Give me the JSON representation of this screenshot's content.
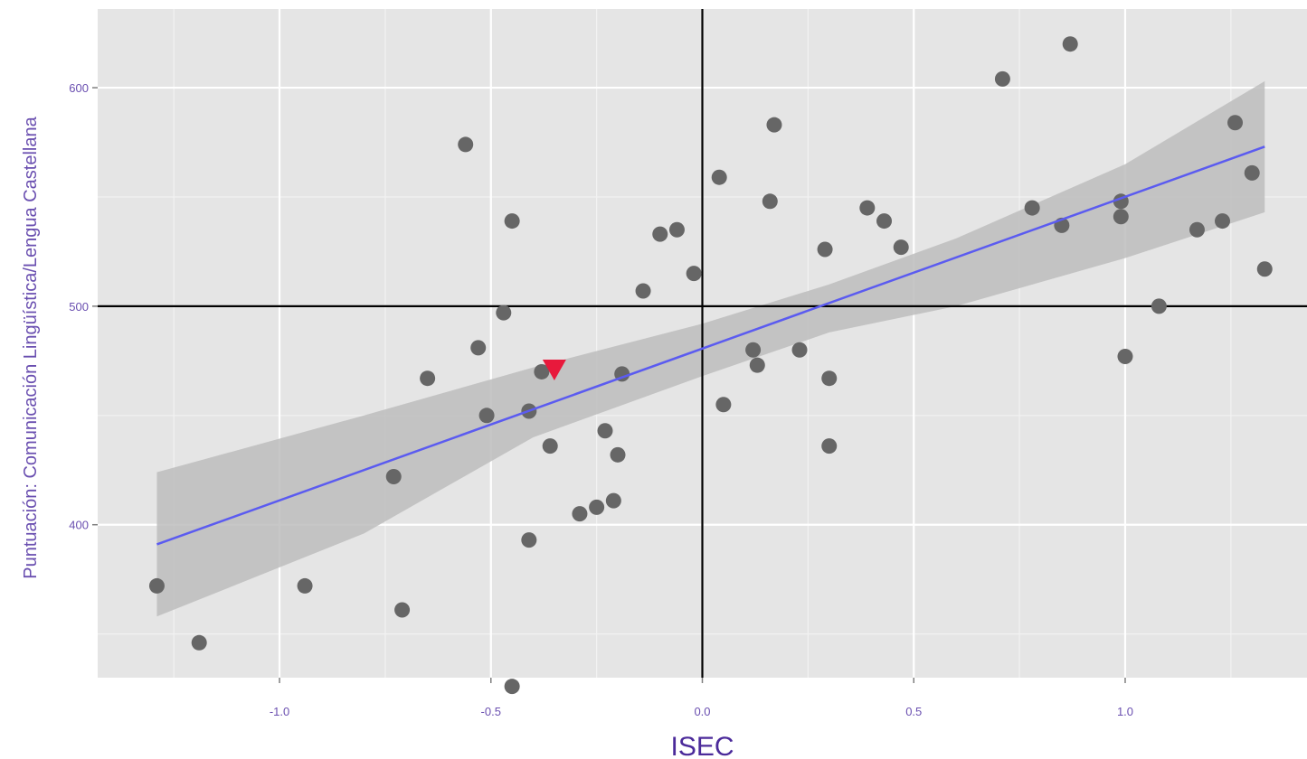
{
  "chart_data": {
    "type": "scatter",
    "title": "",
    "xlabel": "ISEC",
    "ylabel": "Puntuación: Comunicación Lingüística/Lengua Castellana",
    "xlim": [
      -1.43,
      1.43
    ],
    "ylim": [
      330,
      636
    ],
    "x_ticks": [
      -1.0,
      -0.5,
      0.0,
      0.5,
      1.0
    ],
    "x_tick_labels": [
      "-1.0",
      "-0.5",
      "0.0",
      "0.5",
      "1.0"
    ],
    "y_ticks": [
      400,
      500,
      600
    ],
    "y_tick_labels": [
      "400",
      "500",
      "600"
    ],
    "grid": true,
    "reference_lines": {
      "x": 0.0,
      "y": 500
    },
    "colors": {
      "panel_background": "#e5e5e5",
      "grid_major": "#ffffff",
      "grid_minor": "#f2f2f2",
      "points": "#666666",
      "highlight": "#e8193c",
      "fit_line": "#5b5bf0",
      "confidence_band": "#bdbdbd",
      "reference_line": "#000000"
    },
    "points": [
      {
        "x": -1.29,
        "y": 372
      },
      {
        "x": -1.19,
        "y": 346
      },
      {
        "x": -0.94,
        "y": 372
      },
      {
        "x": -0.73,
        "y": 422
      },
      {
        "x": -0.71,
        "y": 361
      },
      {
        "x": -0.65,
        "y": 467
      },
      {
        "x": -0.56,
        "y": 574
      },
      {
        "x": -0.53,
        "y": 481
      },
      {
        "x": -0.51,
        "y": 450
      },
      {
        "x": -0.47,
        "y": 497
      },
      {
        "x": -0.45,
        "y": 539
      },
      {
        "x": -0.45,
        "y": 326
      },
      {
        "x": -0.38,
        "y": 470
      },
      {
        "x": -0.41,
        "y": 452
      },
      {
        "x": -0.41,
        "y": 393
      },
      {
        "x": -0.36,
        "y": 436
      },
      {
        "x": -0.29,
        "y": 405
      },
      {
        "x": -0.25,
        "y": 408
      },
      {
        "x": -0.23,
        "y": 443
      },
      {
        "x": -0.21,
        "y": 411
      },
      {
        "x": -0.2,
        "y": 432
      },
      {
        "x": -0.19,
        "y": 469
      },
      {
        "x": -0.14,
        "y": 507
      },
      {
        "x": -0.1,
        "y": 533
      },
      {
        "x": -0.06,
        "y": 535
      },
      {
        "x": -0.02,
        "y": 515
      },
      {
        "x": 0.04,
        "y": 559
      },
      {
        "x": 0.05,
        "y": 455
      },
      {
        "x": 0.12,
        "y": 480
      },
      {
        "x": 0.13,
        "y": 473
      },
      {
        "x": 0.16,
        "y": 548
      },
      {
        "x": 0.17,
        "y": 583
      },
      {
        "x": 0.23,
        "y": 480
      },
      {
        "x": 0.29,
        "y": 526
      },
      {
        "x": 0.3,
        "y": 467
      },
      {
        "x": 0.3,
        "y": 436
      },
      {
        "x": 0.39,
        "y": 545
      },
      {
        "x": 0.43,
        "y": 539
      },
      {
        "x": 0.47,
        "y": 527
      },
      {
        "x": 0.71,
        "y": 604
      },
      {
        "x": 0.78,
        "y": 545
      },
      {
        "x": 0.85,
        "y": 537
      },
      {
        "x": 0.87,
        "y": 620
      },
      {
        "x": 0.99,
        "y": 548
      },
      {
        "x": 0.99,
        "y": 541
      },
      {
        "x": 1.0,
        "y": 477
      },
      {
        "x": 1.08,
        "y": 500
      },
      {
        "x": 1.17,
        "y": 535
      },
      {
        "x": 1.23,
        "y": 539
      },
      {
        "x": 1.26,
        "y": 584
      },
      {
        "x": 1.3,
        "y": 561
      },
      {
        "x": 1.33,
        "y": 517
      }
    ],
    "highlight_point": {
      "x": -0.35,
      "y": 471,
      "shape": "triangle-down"
    },
    "fit_line": {
      "x": [
        -1.29,
        1.33
      ],
      "y": [
        391,
        573
      ]
    },
    "confidence_band": {
      "x": [
        -1.29,
        -0.8,
        -0.4,
        0.0,
        0.3,
        0.6,
        1.0,
        1.33
      ],
      "upper": [
        424,
        450,
        472,
        492,
        510,
        531,
        565,
        603
      ],
      "lower": [
        358,
        396,
        440,
        468,
        488,
        500,
        522,
        543
      ]
    }
  }
}
